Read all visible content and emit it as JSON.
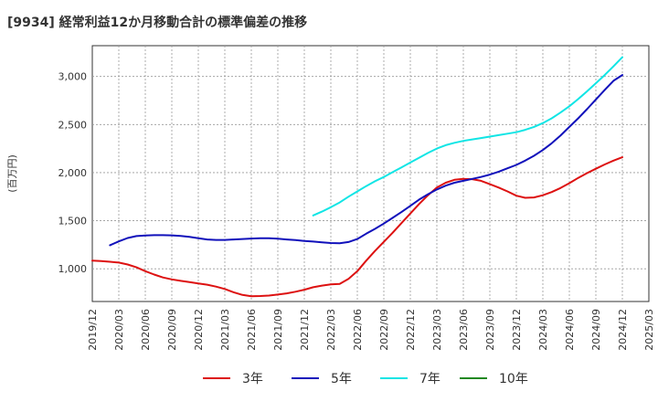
{
  "chart_data": {
    "type": "line",
    "title": "[9934]  経常利益12か月移動合計の標準偏差の推移",
    "ylabel": "(百万円)",
    "xlabel": "",
    "ylim": [
      660,
      3320
    ],
    "yticks": [
      1000,
      1500,
      2000,
      2500,
      3000
    ],
    "ytick_labels": [
      "1,000",
      "1,500",
      "2,000",
      "2,500",
      "3,000"
    ],
    "x_start": "2019-12",
    "x_end": "2025-03",
    "xtick_labels": [
      "2019/12",
      "2020/03",
      "2020/06",
      "2020/09",
      "2020/12",
      "2021/03",
      "2021/06",
      "2021/09",
      "2021/12",
      "2022/03",
      "2022/06",
      "2022/09",
      "2022/12",
      "2023/03",
      "2023/06",
      "2023/09",
      "2023/12",
      "2024/03",
      "2024/06",
      "2024/09",
      "2024/12",
      "2025/03"
    ],
    "grid": true,
    "legend_position": "bottom",
    "series": [
      {
        "name": "3年",
        "color": "#dd1111",
        "points": [
          [
            "2019-12",
            1085
          ],
          [
            "2020-01",
            1080
          ],
          [
            "2020-02",
            1073
          ],
          [
            "2020-03",
            1065
          ],
          [
            "2020-04",
            1045
          ],
          [
            "2020-05",
            1015
          ],
          [
            "2020-06",
            975
          ],
          [
            "2020-07",
            940
          ],
          [
            "2020-08",
            910
          ],
          [
            "2020-09",
            890
          ],
          [
            "2020-10",
            875
          ],
          [
            "2020-11",
            862
          ],
          [
            "2020-12",
            848
          ],
          [
            "2021-01",
            835
          ],
          [
            "2021-02",
            815
          ],
          [
            "2021-03",
            790
          ],
          [
            "2021-04",
            756
          ],
          [
            "2021-05",
            728
          ],
          [
            "2021-06",
            715
          ],
          [
            "2021-07",
            717
          ],
          [
            "2021-08",
            722
          ],
          [
            "2021-09",
            732
          ],
          [
            "2021-10",
            745
          ],
          [
            "2021-11",
            762
          ],
          [
            "2021-12",
            783
          ],
          [
            "2022-01",
            808
          ],
          [
            "2022-02",
            825
          ],
          [
            "2022-03",
            838
          ],
          [
            "2022-04",
            843
          ],
          [
            "2022-05",
            895
          ],
          [
            "2022-06",
            975
          ],
          [
            "2022-07",
            1085
          ],
          [
            "2022-08",
            1185
          ],
          [
            "2022-09",
            1280
          ],
          [
            "2022-10",
            1375
          ],
          [
            "2022-11",
            1475
          ],
          [
            "2022-12",
            1575
          ],
          [
            "2023-01",
            1675
          ],
          [
            "2023-02",
            1765
          ],
          [
            "2023-03",
            1845
          ],
          [
            "2023-04",
            1895
          ],
          [
            "2023-05",
            1925
          ],
          [
            "2023-06",
            1935
          ],
          [
            "2023-07",
            1932
          ],
          [
            "2023-08",
            1915
          ],
          [
            "2023-09",
            1880
          ],
          [
            "2023-10",
            1845
          ],
          [
            "2023-11",
            1805
          ],
          [
            "2023-12",
            1760
          ],
          [
            "2024-01",
            1738
          ],
          [
            "2024-02",
            1742
          ],
          [
            "2024-03",
            1765
          ],
          [
            "2024-04",
            1798
          ],
          [
            "2024-05",
            1840
          ],
          [
            "2024-06",
            1890
          ],
          [
            "2024-07",
            1945
          ],
          [
            "2024-08",
            1995
          ],
          [
            "2024-09",
            2040
          ],
          [
            "2024-10",
            2085
          ],
          [
            "2024-11",
            2125
          ],
          [
            "2024-12",
            2160
          ]
        ]
      },
      {
        "name": "5年",
        "color": "#1111bb",
        "points": [
          [
            "2020-02",
            1245
          ],
          [
            "2020-03",
            1285
          ],
          [
            "2020-04",
            1320
          ],
          [
            "2020-05",
            1340
          ],
          [
            "2020-06",
            1347
          ],
          [
            "2020-07",
            1350
          ],
          [
            "2020-08",
            1350
          ],
          [
            "2020-09",
            1348
          ],
          [
            "2020-10",
            1342
          ],
          [
            "2020-11",
            1332
          ],
          [
            "2020-12",
            1318
          ],
          [
            "2021-01",
            1305
          ],
          [
            "2021-02",
            1300
          ],
          [
            "2021-03",
            1300
          ],
          [
            "2021-04",
            1305
          ],
          [
            "2021-05",
            1310
          ],
          [
            "2021-06",
            1315
          ],
          [
            "2021-07",
            1318
          ],
          [
            "2021-08",
            1318
          ],
          [
            "2021-09",
            1313
          ],
          [
            "2021-10",
            1305
          ],
          [
            "2021-11",
            1298
          ],
          [
            "2021-12",
            1290
          ],
          [
            "2022-01",
            1283
          ],
          [
            "2022-02",
            1275
          ],
          [
            "2022-03",
            1268
          ],
          [
            "2022-04",
            1265
          ],
          [
            "2022-05",
            1278
          ],
          [
            "2022-06",
            1310
          ],
          [
            "2022-07",
            1365
          ],
          [
            "2022-08",
            1415
          ],
          [
            "2022-09",
            1470
          ],
          [
            "2022-10",
            1530
          ],
          [
            "2022-11",
            1590
          ],
          [
            "2022-12",
            1655
          ],
          [
            "2023-01",
            1720
          ],
          [
            "2023-02",
            1775
          ],
          [
            "2023-03",
            1825
          ],
          [
            "2023-04",
            1865
          ],
          [
            "2023-05",
            1895
          ],
          [
            "2023-06",
            1915
          ],
          [
            "2023-07",
            1935
          ],
          [
            "2023-08",
            1955
          ],
          [
            "2023-09",
            1980
          ],
          [
            "2023-10",
            2010
          ],
          [
            "2023-11",
            2045
          ],
          [
            "2023-12",
            2080
          ],
          [
            "2024-01",
            2125
          ],
          [
            "2024-02",
            2175
          ],
          [
            "2024-03",
            2235
          ],
          [
            "2024-04",
            2305
          ],
          [
            "2024-05",
            2385
          ],
          [
            "2024-06",
            2475
          ],
          [
            "2024-07",
            2565
          ],
          [
            "2024-08",
            2660
          ],
          [
            "2024-09",
            2760
          ],
          [
            "2024-10",
            2860
          ],
          [
            "2024-11",
            2955
          ],
          [
            "2024-12",
            3015
          ]
        ]
      },
      {
        "name": "7年",
        "color": "#11e5e5",
        "points": [
          [
            "2022-01",
            1555
          ],
          [
            "2022-02",
            1595
          ],
          [
            "2022-03",
            1640
          ],
          [
            "2022-04",
            1690
          ],
          [
            "2022-05",
            1750
          ],
          [
            "2022-06",
            1805
          ],
          [
            "2022-07",
            1860
          ],
          [
            "2022-08",
            1910
          ],
          [
            "2022-09",
            1955
          ],
          [
            "2022-10",
            2005
          ],
          [
            "2022-11",
            2055
          ],
          [
            "2022-12",
            2105
          ],
          [
            "2023-01",
            2155
          ],
          [
            "2023-02",
            2205
          ],
          [
            "2023-03",
            2250
          ],
          [
            "2023-04",
            2285
          ],
          [
            "2023-05",
            2310
          ],
          [
            "2023-06",
            2330
          ],
          [
            "2023-07",
            2345
          ],
          [
            "2023-08",
            2360
          ],
          [
            "2023-09",
            2375
          ],
          [
            "2023-10",
            2390
          ],
          [
            "2023-11",
            2405
          ],
          [
            "2023-12",
            2420
          ],
          [
            "2024-01",
            2445
          ],
          [
            "2024-02",
            2475
          ],
          [
            "2024-03",
            2515
          ],
          [
            "2024-04",
            2565
          ],
          [
            "2024-05",
            2625
          ],
          [
            "2024-06",
            2690
          ],
          [
            "2024-07",
            2765
          ],
          [
            "2024-08",
            2845
          ],
          [
            "2024-09",
            2930
          ],
          [
            "2024-10",
            3015
          ],
          [
            "2024-11",
            3105
          ],
          [
            "2024-12",
            3200
          ]
        ]
      },
      {
        "name": "10年",
        "color": "#228822",
        "points": []
      }
    ]
  }
}
